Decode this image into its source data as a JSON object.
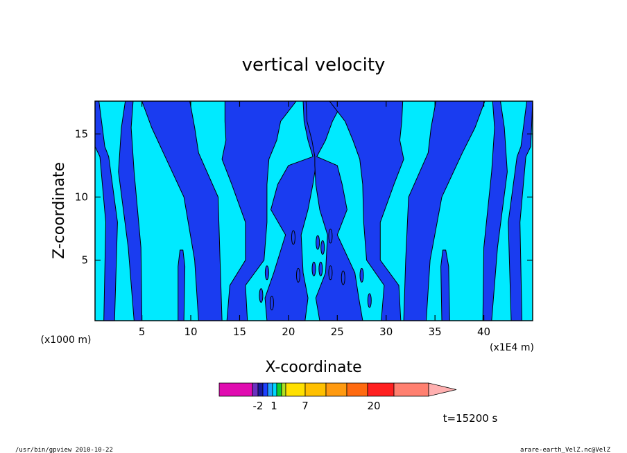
{
  "chart_data": {
    "type": "heatmap",
    "title": "vertical velocity",
    "xlabel": "X-coordinate",
    "ylabel": "Z-coordinate",
    "x_unit": "(x1E4 m)",
    "y_unit": "(x1000 m)",
    "xlim": [
      0.2,
      45
    ],
    "ylim": [
      0.2,
      17.6
    ],
    "x_ticks": [
      "5",
      "10",
      "15",
      "20",
      "25",
      "30",
      "35",
      "40"
    ],
    "y_ticks": [
      "5",
      "10",
      "15"
    ],
    "colorbar": {
      "labels": [
        "-2",
        "1",
        "7",
        "20"
      ],
      "colors": [
        "#e00cb0",
        "#6a30c0",
        "#1a1aa0",
        "#1e40ff",
        "#22a0ff",
        "#00d8ff",
        "#10d030",
        "#b0e020",
        "#ffe000",
        "#ffc000",
        "#ff9a10",
        "#ff6a10",
        "#ff2020",
        "#ff8070",
        "#ffb0b0"
      ]
    },
    "field_colors": {
      "negative": "#1a3cf0",
      "positive": "#00eaff"
    },
    "time_label": "t=15200 s"
  },
  "footer": {
    "left": "/usr/bin/gpview   2010-10-22",
    "right": "arare-earth_VelZ.nc@VelZ"
  }
}
